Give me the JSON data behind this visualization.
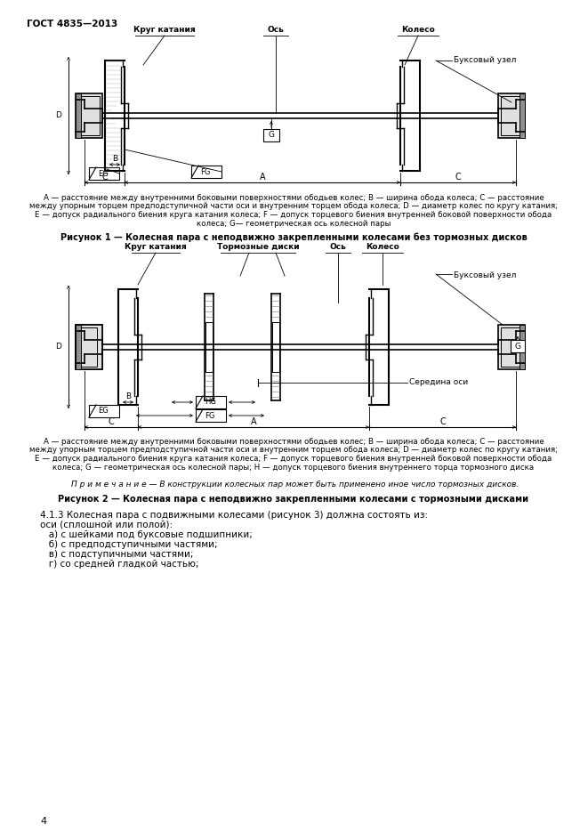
{
  "background_color": "#ffffff",
  "page_width": 6.61,
  "page_height": 9.35,
  "dpi": 100,
  "header_text": "ГОСТ 4835—2013",
  "fig1_labels": {
    "krug_kataniya": "Круг катания",
    "os": "Ось",
    "koleso": "Колесо",
    "buksovy_uzel": "Буксовый узел"
  },
  "fig2_labels": {
    "krug_kataniya": "Круг катания",
    "tormoznye_diski": "Тормозные диски",
    "os": "Ось",
    "koleso": "Колесо",
    "buksovy_uzel": "Буксовый узел",
    "seredina_osi": "Середина оси"
  },
  "fig1_legend_lines": [
    "A — расстояние между внутренними боковыми поверхностями ободьев колес; B — ширина обода колеса; C — расстояние",
    "между упорным торцем предподступичной части оси и внутренним торцем обода колеса; D — диаметр колес по кругу катания;",
    "E — допуск радиального биения круга катания колеса; F — допуск торцевого биения внутренней боковой поверхности обода",
    "колеса; G— геометрическая ось колесной пары"
  ],
  "fig2_legend_lines": [
    "A — расстояние между внутренними боковыми поверхностями ободьев колес; B — ширина обода колеса; C — расстояние",
    "между упорным торцем предподступичной части оси и внутренним торцем обода колеса; D — диаметр колес по кругу катания;",
    "E — допуск радиального биения круга катания колеса; F — допуск торцевого биения внутренней боковой поверхности обода",
    "колеса; G — геометрическая ось колесной пары; H — допуск торцевого биения внутреннего торца тормозного диска"
  ],
  "note_text": "П р и м е ч а н и е — В конструкции колесных пар может быть применено иное число тормозных дисков.",
  "fig1_caption": "Рисунок 1 — Колесная пара с неподвижно закрепленными колесами без тормозных дисков",
  "fig2_caption": "Рисунок 2 — Колесная пара с неподвижно закрепленными колесами с тормозными дисками",
  "section413_line1": "4.1.3 Колесная пара с подвижными колесами (рисунок 3) должна состоять из:",
  "section413_line2": "оси (сплошной или полой):",
  "section413_line3a": "   а) с шейками под буксовые подшипники;",
  "section413_line3b": "   б) с предподступичными частями;",
  "section413_line3c": "   в) с подступичными частями;",
  "section413_line3d": "   г) со средней гладкой частью;",
  "page_number": "4"
}
